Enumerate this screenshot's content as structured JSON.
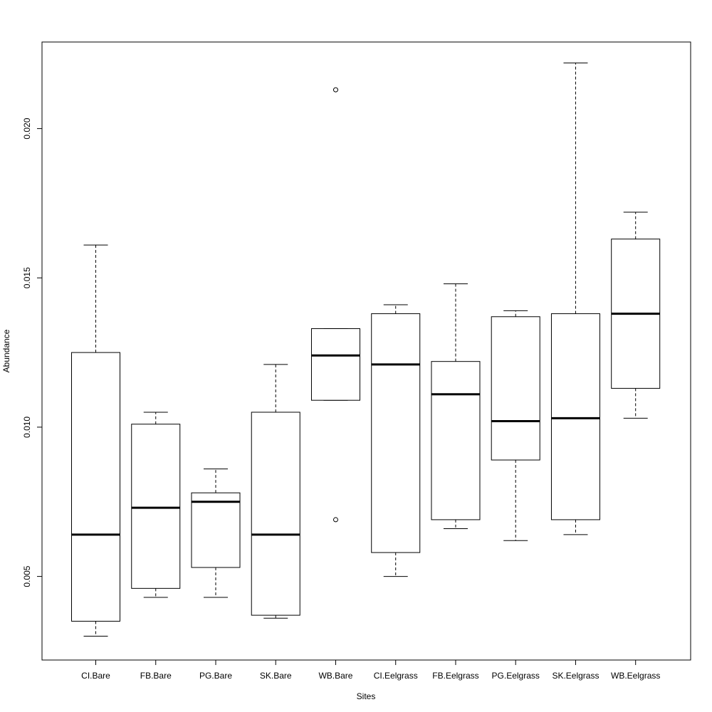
{
  "chart_data": {
    "type": "box",
    "title": "",
    "xlabel": "Sites",
    "ylabel": "Abundance",
    "ylim": [
      0.0022,
      0.0229
    ],
    "yticks": [
      0.005,
      0.01,
      0.015,
      0.02
    ],
    "ytick_labels": [
      "0.005",
      "0.010",
      "0.015",
      "0.020"
    ],
    "grid": false,
    "categories": [
      "CI.Bare",
      "FB.Bare",
      "PG.Bare",
      "SK.Bare",
      "WB.Bare",
      "CI.Eelgrass",
      "FB.Eelgrass",
      "PG.Eelgrass",
      "SK.Eelgrass",
      "WB.Eelgrass"
    ],
    "boxes": [
      {
        "whisker_low": 0.003,
        "q1": 0.0035,
        "median": 0.0064,
        "q3": 0.0125,
        "whisker_high": 0.0161,
        "outliers": []
      },
      {
        "whisker_low": 0.0043,
        "q1": 0.0046,
        "median": 0.0073,
        "q3": 0.0101,
        "whisker_high": 0.0105,
        "outliers": []
      },
      {
        "whisker_low": 0.0043,
        "q1": 0.0053,
        "median": 0.0075,
        "q3": 0.0078,
        "whisker_high": 0.0086,
        "outliers": []
      },
      {
        "whisker_low": 0.0036,
        "q1": 0.0037,
        "median": 0.0064,
        "q3": 0.0105,
        "whisker_high": 0.0121,
        "outliers": []
      },
      {
        "whisker_low": 0.0109,
        "q1": 0.0109,
        "median": 0.0124,
        "q3": 0.0133,
        "whisker_high": 0.0133,
        "outliers": [
          0.0213,
          0.0069
        ]
      },
      {
        "whisker_low": 0.005,
        "q1": 0.0058,
        "median": 0.0121,
        "q3": 0.0138,
        "whisker_high": 0.0141,
        "outliers": []
      },
      {
        "whisker_low": 0.0066,
        "q1": 0.0069,
        "median": 0.0111,
        "q3": 0.0122,
        "whisker_high": 0.0148,
        "outliers": []
      },
      {
        "whisker_low": 0.0062,
        "q1": 0.0089,
        "median": 0.0102,
        "q3": 0.0137,
        "whisker_high": 0.0139,
        "outliers": []
      },
      {
        "whisker_low": 0.0064,
        "q1": 0.0069,
        "median": 0.0103,
        "q3": 0.0138,
        "whisker_high": 0.0222,
        "outliers": []
      },
      {
        "whisker_low": 0.0103,
        "q1": 0.0113,
        "median": 0.0138,
        "q3": 0.0163,
        "whisker_high": 0.0172,
        "outliers": []
      }
    ]
  }
}
